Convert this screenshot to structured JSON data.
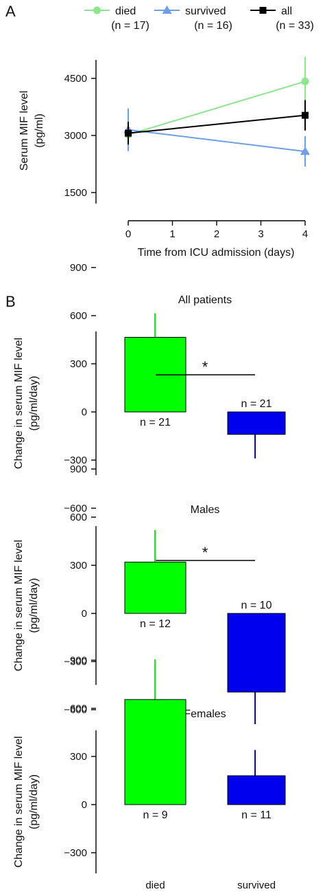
{
  "chart_data": [
    {
      "type": "line",
      "panel_label": "A",
      "xlabel": "Time from ICU admission (days)",
      "ylabel_lines": [
        "Serum MIF level",
        "(pg/ml)"
      ],
      "x_ticks": [
        "0",
        "1",
        "2",
        "3",
        "4"
      ],
      "y_ticks": [
        "1500",
        "3000",
        "4500"
      ],
      "xlim": [
        0,
        4
      ],
      "ylim": [
        1000,
        5000
      ],
      "legend_position": "top",
      "series": [
        {
          "name": "died",
          "n_label": "(n = 17)",
          "color": "#8de58f",
          "marker": "circle",
          "points": [
            {
              "x": 0,
              "y": 3020,
              "err": 380
            },
            {
              "x": 4,
              "y": 4420,
              "err": 650
            }
          ]
        },
        {
          "name": "survived",
          "n_label": "(n = 16)",
          "color": "#6e9fe6",
          "marker": "triangle",
          "points": [
            {
              "x": 0,
              "y": 3150,
              "err": 560
            },
            {
              "x": 4,
              "y": 2580,
              "err": 400
            }
          ]
        },
        {
          "name": "all",
          "n_label": "(n = 33)",
          "color": "#000000",
          "marker": "square",
          "points": [
            {
              "x": 0,
              "y": 3060,
              "err": 300
            },
            {
              "x": 4,
              "y": 3530,
              "err": 400
            }
          ]
        }
      ]
    },
    {
      "type": "bar",
      "panel_label": "B",
      "title": "All patients",
      "ylabel_lines": [
        "Change in serum MIF level",
        "(pg/ml/day)"
      ],
      "y_ticks": [
        "900",
        "600",
        "300",
        "0",
        "-300",
        "-600"
      ],
      "ylim": [
        -780,
        1000
      ],
      "categories": [
        "died",
        "survived"
      ],
      "values": [
        465,
        -140
      ],
      "errors": [
        150,
        150
      ],
      "n_labels": [
        "n = 21",
        "n = 21"
      ],
      "significance": "*",
      "colors": [
        "#00ff00",
        "#0000ee"
      ]
    },
    {
      "type": "bar",
      "title": "Males",
      "ylabel_lines": [
        "Change in serum MIF level",
        "(pg/ml/day)"
      ],
      "y_ticks": [
        "900",
        "600",
        "300",
        "0",
        "-300",
        "-600"
      ],
      "ylim": [
        -780,
        1000
      ],
      "categories": [
        "died",
        "survived"
      ],
      "values": [
        320,
        -490
      ],
      "errors": [
        200,
        200
      ],
      "n_labels": [
        "n = 12",
        "n = 10"
      ],
      "significance": "*",
      "colors": [
        "#00ff00",
        "#0000ee"
      ]
    },
    {
      "type": "bar",
      "title": "Females",
      "ylabel_lines": [
        "Change in serum MIF level",
        "(pg/ml/day)"
      ],
      "y_ticks": [
        "900",
        "600",
        "300",
        "0",
        "-300",
        "-600"
      ],
      "ylim": [
        -780,
        1000
      ],
      "categories": [
        "died",
        "survived"
      ],
      "values": [
        655,
        180
      ],
      "errors": [
        250,
        160
      ],
      "n_labels": [
        "n = 9",
        "n = 11"
      ],
      "significance": "",
      "colors": [
        "#00ff00",
        "#0000ee"
      ],
      "x_tick_labels": [
        "died",
        "survived"
      ]
    }
  ]
}
